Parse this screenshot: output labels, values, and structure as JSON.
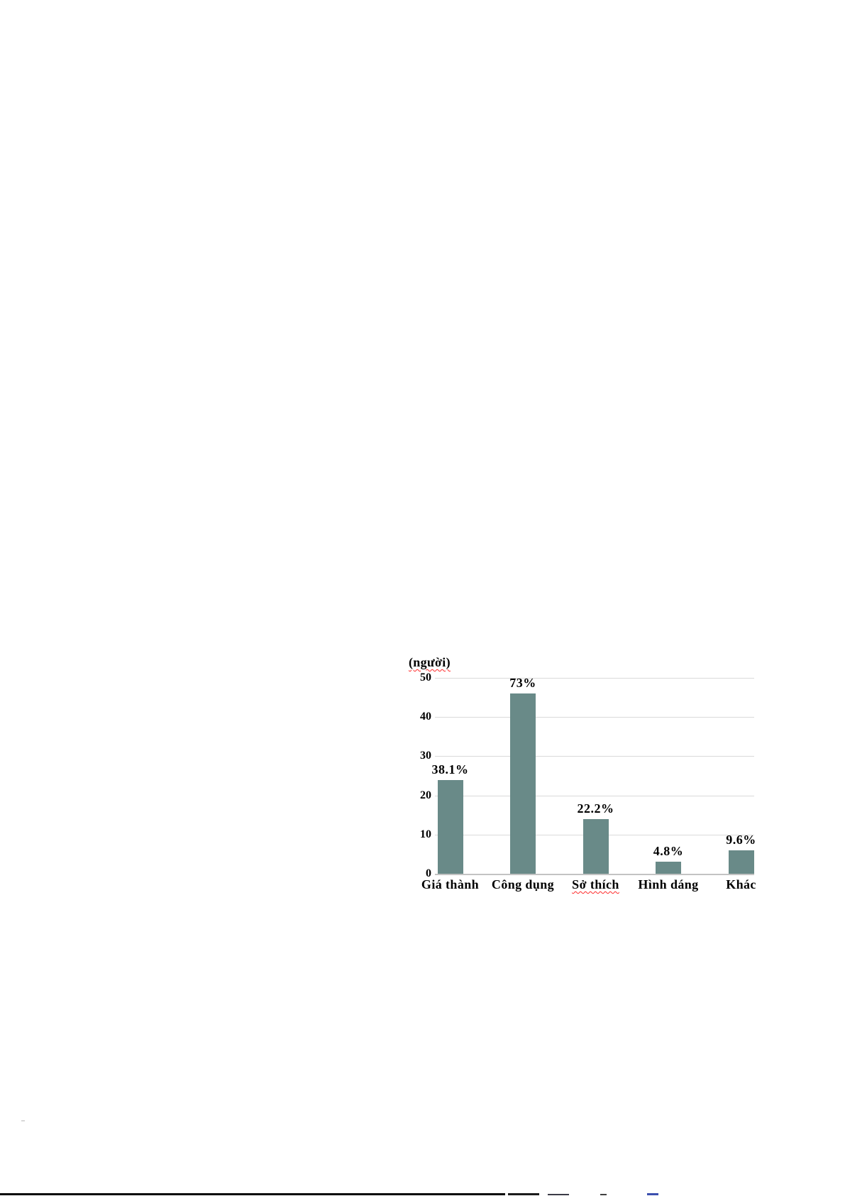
{
  "page": {
    "background": "#ffffff",
    "notes": "white document page containing a single bar chart; a thin black rule and clipped text fragments are cut off at the bottom edge"
  },
  "chart_data": {
    "type": "bar",
    "title": "",
    "y_axis_title": "(người)",
    "xlabel": "",
    "ylabel": "(người)",
    "categories": [
      "Giá thành",
      "Công dụng",
      "Sở thích",
      "Hình dáng",
      "Khác"
    ],
    "values_people": [
      24,
      46,
      14,
      3,
      6
    ],
    "bar_labels": [
      "38.1%",
      "73%",
      "22.2%",
      "4.8%",
      "9.6%"
    ],
    "ylim": [
      0,
      50
    ],
    "yticks": [
      0,
      10,
      20,
      30,
      40,
      50
    ],
    "grid": "horizontal",
    "legend": "none",
    "bar_color": "#698a88",
    "gridline_color": "#dadada",
    "spellcheck_underline": {
      "y_axis_title": true,
      "categories": [
        false,
        false,
        true,
        false,
        false
      ]
    }
  }
}
